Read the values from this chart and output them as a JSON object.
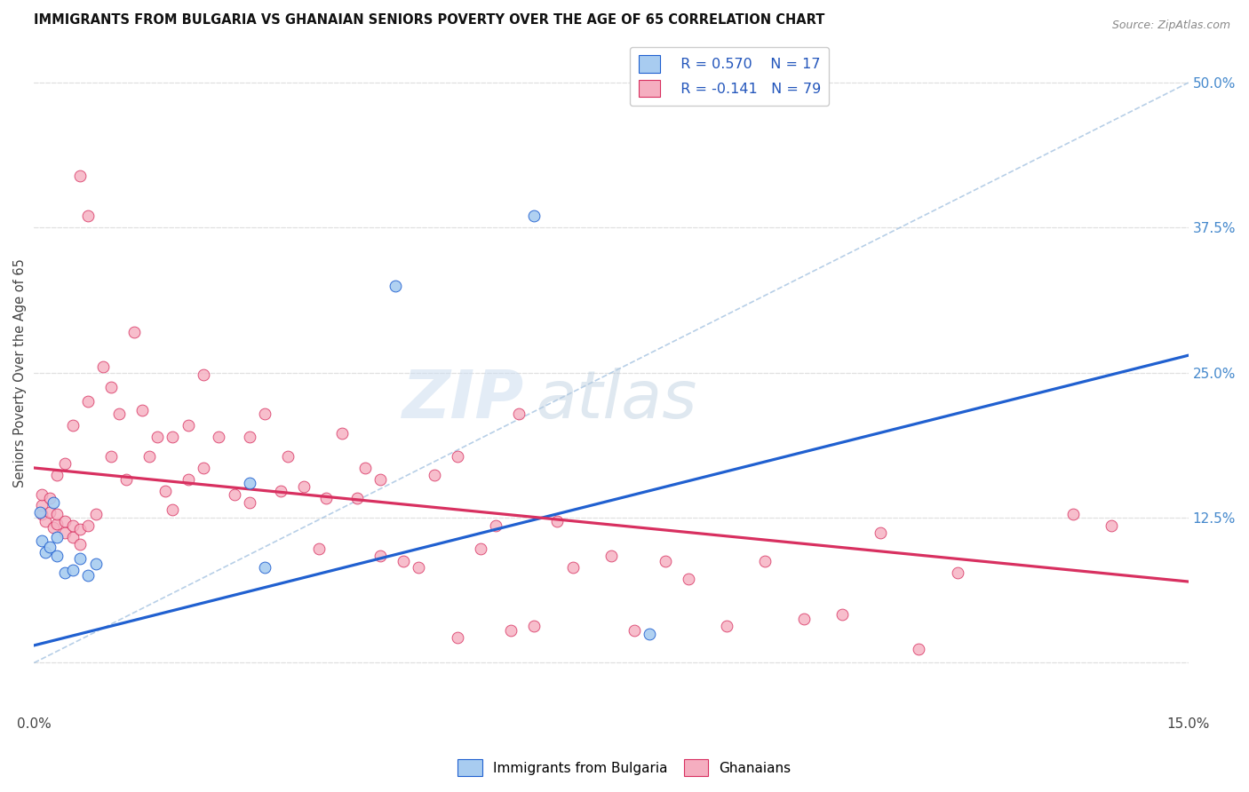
{
  "title": "IMMIGRANTS FROM BULGARIA VS GHANAIAN SENIORS POVERTY OVER THE AGE OF 65 CORRELATION CHART",
  "source": "Source: ZipAtlas.com",
  "ylabel": "Seniors Poverty Over the Age of 65",
  "xlim": [
    0.0,
    0.15
  ],
  "ylim": [
    -0.04,
    0.54
  ],
  "legend_r_blue": "R = 0.570",
  "legend_n_blue": "N = 17",
  "legend_r_pink": "R = -0.141",
  "legend_n_pink": "N = 79",
  "blue_color": "#a8ccf0",
  "pink_color": "#f5aec0",
  "blue_line_color": "#2060d0",
  "pink_line_color": "#d83060",
  "watermark_zip": "ZIP",
  "watermark_atlas": "atlas",
  "blue_scatter_x": [
    0.0008,
    0.001,
    0.0015,
    0.002,
    0.0025,
    0.003,
    0.003,
    0.004,
    0.005,
    0.006,
    0.007,
    0.008,
    0.028,
    0.03,
    0.047,
    0.065,
    0.08
  ],
  "blue_scatter_y": [
    0.13,
    0.105,
    0.095,
    0.1,
    0.138,
    0.108,
    0.092,
    0.078,
    0.08,
    0.09,
    0.075,
    0.085,
    0.155,
    0.082,
    0.325,
    0.385,
    0.025
  ],
  "blue_trend_x": [
    0.0,
    0.15
  ],
  "blue_trend_y": [
    0.015,
    0.265
  ],
  "pink_scatter_x": [
    0.001,
    0.001,
    0.001,
    0.0015,
    0.002,
    0.002,
    0.0025,
    0.003,
    0.003,
    0.003,
    0.004,
    0.004,
    0.004,
    0.005,
    0.005,
    0.005,
    0.006,
    0.006,
    0.006,
    0.007,
    0.007,
    0.007,
    0.008,
    0.009,
    0.01,
    0.01,
    0.011,
    0.012,
    0.013,
    0.014,
    0.015,
    0.016,
    0.017,
    0.018,
    0.018,
    0.02,
    0.02,
    0.022,
    0.022,
    0.024,
    0.026,
    0.028,
    0.028,
    0.03,
    0.032,
    0.033,
    0.035,
    0.037,
    0.038,
    0.04,
    0.042,
    0.043,
    0.045,
    0.045,
    0.048,
    0.05,
    0.052,
    0.055,
    0.055,
    0.058,
    0.06,
    0.062,
    0.063,
    0.065,
    0.068,
    0.07,
    0.075,
    0.078,
    0.082,
    0.085,
    0.09,
    0.095,
    0.1,
    0.105,
    0.11,
    0.115,
    0.12,
    0.135,
    0.14
  ],
  "pink_scatter_y": [
    0.128,
    0.136,
    0.145,
    0.122,
    0.13,
    0.142,
    0.117,
    0.12,
    0.128,
    0.162,
    0.112,
    0.122,
    0.172,
    0.108,
    0.118,
    0.205,
    0.102,
    0.115,
    0.42,
    0.225,
    0.118,
    0.385,
    0.128,
    0.255,
    0.178,
    0.238,
    0.215,
    0.158,
    0.285,
    0.218,
    0.178,
    0.195,
    0.148,
    0.132,
    0.195,
    0.205,
    0.158,
    0.168,
    0.248,
    0.195,
    0.145,
    0.138,
    0.195,
    0.215,
    0.148,
    0.178,
    0.152,
    0.098,
    0.142,
    0.198,
    0.142,
    0.168,
    0.092,
    0.158,
    0.088,
    0.082,
    0.162,
    0.022,
    0.178,
    0.098,
    0.118,
    0.028,
    0.215,
    0.032,
    0.122,
    0.082,
    0.092,
    0.028,
    0.088,
    0.072,
    0.032,
    0.088,
    0.038,
    0.042,
    0.112,
    0.012,
    0.078,
    0.128,
    0.118
  ],
  "pink_trend_x": [
    0.0,
    0.15
  ],
  "pink_trend_y": [
    0.168,
    0.07
  ],
  "diag_line_x": [
    0.0,
    0.15
  ],
  "diag_line_y": [
    0.0,
    0.5
  ],
  "x_tick_positions": [
    0.0,
    0.03,
    0.06,
    0.09,
    0.12,
    0.15
  ],
  "x_tick_labels": [
    "0.0%",
    "",
    "",
    "",
    "",
    "15.0%"
  ],
  "y_ticks_right": [
    0.0,
    0.125,
    0.25,
    0.375,
    0.5
  ],
  "y_tick_labels_right": [
    "",
    "12.5%",
    "25.0%",
    "37.5%",
    "50.0%"
  ],
  "background_color": "#ffffff",
  "grid_color": "#e0e0e0",
  "marker_size": 85
}
